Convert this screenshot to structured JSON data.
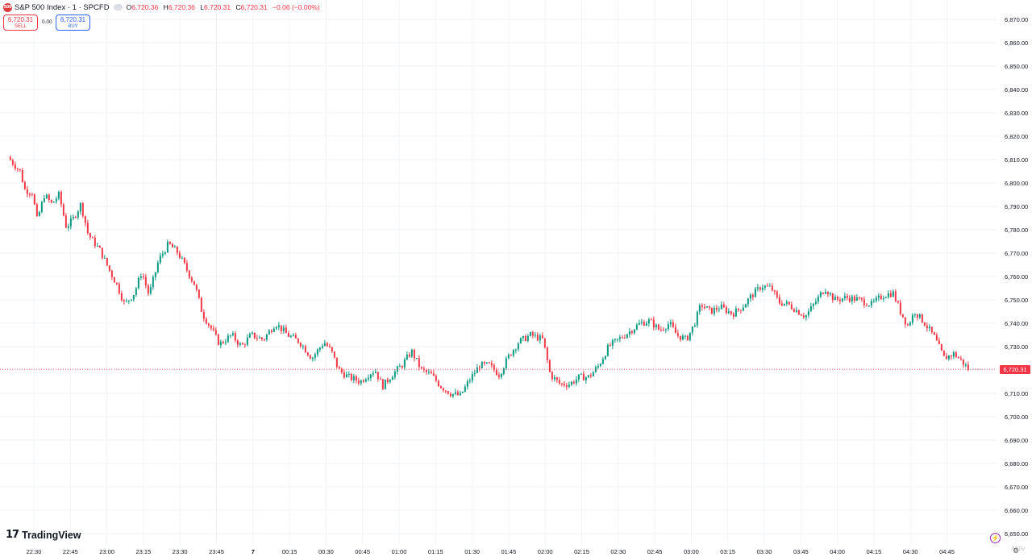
{
  "symbol": {
    "logo_text": "500",
    "name": "S&P 500 Index · 1 · SPCFD",
    "o_label": "O",
    "o_value": "6,720.36",
    "h_label": "H",
    "h_value": "6,720.36",
    "l_label": "L",
    "l_value": "6,720.31",
    "c_label": "C",
    "c_value": "6,720.31",
    "change": "−0.06 (−0.00%)"
  },
  "trade": {
    "sell_price": "6,720.31",
    "sell_label": "SELL",
    "spread": "0.00",
    "buy_price": "6,720.31",
    "buy_label": "BUY"
  },
  "last_price_label": "6,720.31",
  "branding": {
    "logo_mark": "17",
    "logo_text": "TradingView",
    "watermark": "Aktiv"
  },
  "icons": {
    "bolt": "bolt-icon",
    "gear": "gear-icon",
    "eye": "eye-icon"
  },
  "colors": {
    "up": "#089981",
    "down": "#f23645",
    "grid": "#f2f3f5",
    "axis_text": "#131722"
  },
  "chart_data": {
    "type": "candlestick",
    "title": "S&P 500 Index · 1 · SPCFD",
    "y_ticks": [
      "6,650.00",
      "6,660.00",
      "6,670.00",
      "6,680.00",
      "6,690.00",
      "6,700.00",
      "6,710.00",
      "6,720.00",
      "6,730.00",
      "6,740.00",
      "6,750.00",
      "6,760.00",
      "6,770.00",
      "6,780.00",
      "6,790.00",
      "6,800.00",
      "6,810.00",
      "6,820.00",
      "6,830.00",
      "6,840.00",
      "6,850.00",
      "6,860.00",
      "6,870.00"
    ],
    "x_ticks": [
      "22:30",
      "22:45",
      "23:00",
      "23:15",
      "23:30",
      "23:45",
      "7",
      "00:15",
      "00:30",
      "00:45",
      "01:00",
      "01:15",
      "01:30",
      "01:45",
      "02:00",
      "02:15",
      "02:30",
      "02:45",
      "03:00",
      "03:15",
      "03:30",
      "03:45",
      "04:00",
      "04:15",
      "04:30",
      "04:45"
    ],
    "ylim": [
      6650,
      6870
    ],
    "grid": true,
    "last_price": 6720.31,
    "price_path": [
      [
        "22:20",
        6811
      ],
      [
        "22:25",
        6805
      ],
      [
        "22:27",
        6797
      ],
      [
        "22:30",
        6796
      ],
      [
        "22:32",
        6784
      ],
      [
        "22:35",
        6795
      ],
      [
        "22:38",
        6791
      ],
      [
        "22:41",
        6795
      ],
      [
        "22:44",
        6781
      ],
      [
        "22:47",
        6785
      ],
      [
        "22:50",
        6791
      ],
      [
        "22:53",
        6778
      ],
      [
        "22:58",
        6771
      ],
      [
        "23:02",
        6762
      ],
      [
        "23:05",
        6756
      ],
      [
        "23:08",
        6748
      ],
      [
        "23:12",
        6753
      ],
      [
        "23:15",
        6762
      ],
      [
        "23:18",
        6752
      ],
      [
        "23:22",
        6767
      ],
      [
        "23:26",
        6774
      ],
      [
        "23:30",
        6770
      ],
      [
        "23:34",
        6762
      ],
      [
        "23:37",
        6756
      ],
      [
        "23:40",
        6744
      ],
      [
        "23:44",
        6737
      ],
      [
        "23:47",
        6731
      ],
      [
        "23:52",
        6735
      ],
      [
        "23:56",
        6730
      ],
      [
        "00:00",
        6735
      ],
      [
        "00:05",
        6733
      ],
      [
        "00:10",
        6740
      ],
      [
        "00:15",
        6735
      ],
      [
        "00:20",
        6732
      ],
      [
        "00:25",
        6725
      ],
      [
        "00:30",
        6732
      ],
      [
        "00:33",
        6728
      ],
      [
        "00:36",
        6720
      ],
      [
        "00:40",
        6717
      ],
      [
        "00:45",
        6715
      ],
      [
        "00:48",
        6718
      ],
      [
        "00:51",
        6720
      ],
      [
        "00:54",
        6713
      ],
      [
        "00:58",
        6718
      ],
      [
        "01:02",
        6722
      ],
      [
        "01:06",
        6728
      ],
      [
        "01:10",
        6720
      ],
      [
        "01:14",
        6718
      ],
      [
        "01:18",
        6713
      ],
      [
        "01:22",
        6710
      ],
      [
        "01:26",
        6709
      ],
      [
        "01:30",
        6716
      ],
      [
        "01:34",
        6722
      ],
      [
        "01:38",
        6722
      ],
      [
        "01:42",
        6718
      ],
      [
        "01:46",
        6726
      ],
      [
        "01:50",
        6732
      ],
      [
        "01:55",
        6735
      ],
      [
        "02:00",
        6733
      ],
      [
        "02:03",
        6718
      ],
      [
        "02:07",
        6714
      ],
      [
        "02:11",
        6714
      ],
      [
        "02:15",
        6717
      ],
      [
        "02:19",
        6717
      ],
      [
        "02:23",
        6722
      ],
      [
        "02:27",
        6730
      ],
      [
        "02:31",
        6733
      ],
      [
        "02:35",
        6736
      ],
      [
        "02:40",
        6740
      ],
      [
        "02:44",
        6741
      ],
      [
        "02:48",
        6737
      ],
      [
        "02:52",
        6740
      ],
      [
        "02:55",
        6735
      ],
      [
        "02:59",
        6733
      ],
      [
        "03:02",
        6739
      ],
      [
        "03:05",
        6748
      ],
      [
        "03:09",
        6745
      ],
      [
        "03:13",
        6747
      ],
      [
        "03:18",
        6744
      ],
      [
        "03:22",
        6747
      ],
      [
        "03:26",
        6752
      ],
      [
        "03:30",
        6756
      ],
      [
        "03:34",
        6755
      ],
      [
        "03:37",
        6749
      ],
      [
        "03:41",
        6748
      ],
      [
        "03:45",
        6745
      ],
      [
        "03:48",
        6743
      ],
      [
        "03:52",
        6749
      ],
      [
        "03:56",
        6755
      ],
      [
        "04:00",
        6750
      ],
      [
        "04:05",
        6751
      ],
      [
        "04:10",
        6750
      ],
      [
        "04:15",
        6748
      ],
      [
        "04:20",
        6752
      ],
      [
        "04:24",
        6753
      ],
      [
        "04:27",
        6745
      ],
      [
        "04:30",
        6739
      ],
      [
        "04:33",
        6745
      ],
      [
        "04:37",
        6740
      ],
      [
        "04:41",
        6734
      ],
      [
        "04:45",
        6725
      ],
      [
        "04:49",
        6727
      ],
      [
        "04:52",
        6724
      ],
      [
        "04:55",
        6720.31
      ],
      [
        "04:58",
        6720.31
      ]
    ]
  }
}
